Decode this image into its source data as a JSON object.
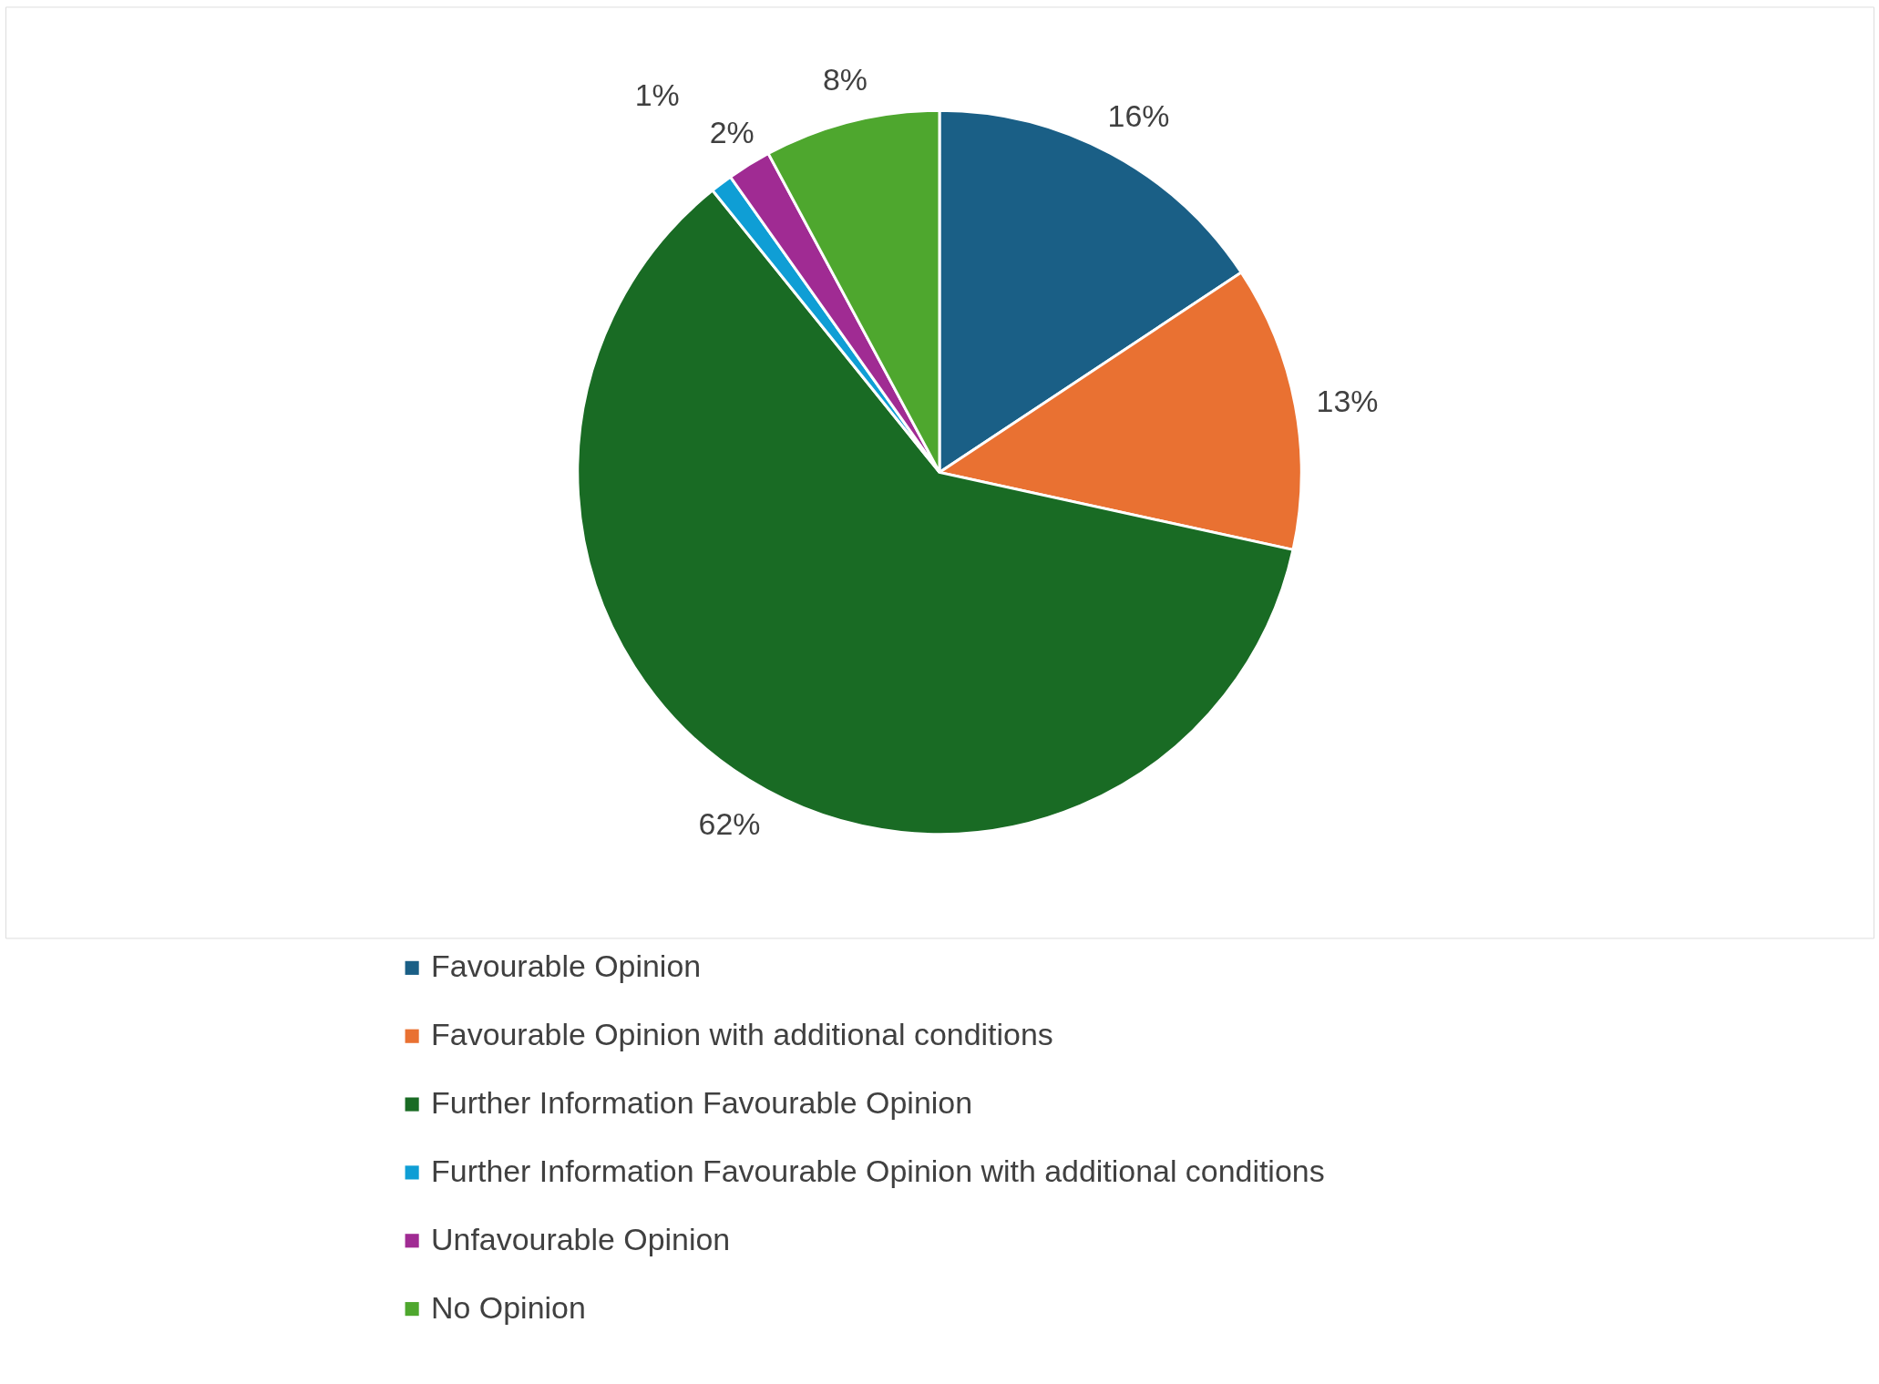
{
  "chart_data": {
    "type": "pie",
    "categories": [
      "Favourable Opinion",
      "Favourable Opinion with additional conditions",
      "Further Information Favourable Opinion",
      "Further Information Favourable Opinion with additional conditions",
      "Unfavourable Opinion",
      "No Opinion"
    ],
    "values": [
      16,
      13,
      62,
      1,
      2,
      8
    ],
    "colors": [
      "#1a5f86",
      "#e97132",
      "#196b24",
      "#0f9ed5",
      "#a02b93",
      "#4ea72e"
    ],
    "value_labels": [
      "16%",
      "13%",
      "62%",
      "1%",
      "2%",
      "8%"
    ],
    "legend": "bottom"
  }
}
